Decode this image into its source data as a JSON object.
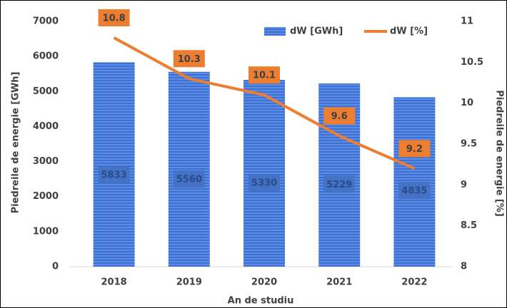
{
  "chart_data": {
    "type": "bar_line",
    "categories": [
      "2018",
      "2019",
      "2020",
      "2021",
      "2022"
    ],
    "series": [
      {
        "name": "dW [GWh]",
        "color": "#4472c4",
        "values": [
          5833,
          5560,
          5330,
          5229,
          4835
        ]
      },
      {
        "name": "dW [%]",
        "color": "#ed7d31",
        "axis": "y2",
        "values": [
          10.8,
          10.3,
          10.1,
          9.6,
          9.2
        ]
      }
    ],
    "xlabel": "An de studiu",
    "ylabel": "Piedreile de energie [GWh]",
    "y2label": "Piedreile de energie [%]",
    "ylim": [
      0,
      7000
    ],
    "yticks": [
      0,
      1000,
      2000,
      3000,
      4000,
      5000,
      6000,
      7000
    ],
    "y2lim": [
      8,
      11
    ],
    "y2ticks": [
      8,
      8.5,
      9,
      9.5,
      10,
      10.5,
      11
    ],
    "legend": "top-right"
  }
}
